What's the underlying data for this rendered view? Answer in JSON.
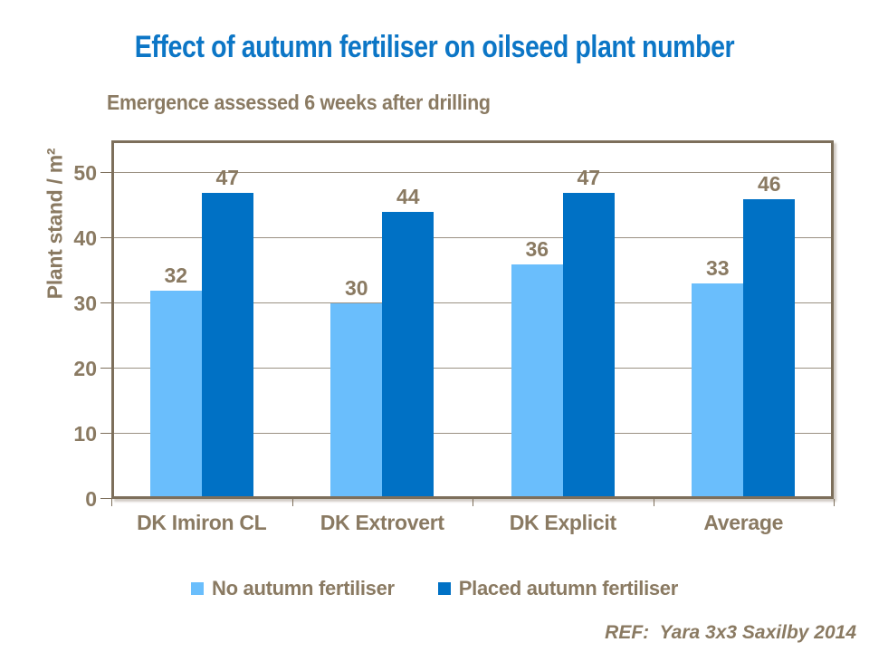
{
  "slide": {
    "title": "Effect of autumn fertiliser on oilseed plant number",
    "subtitle": "Emergence assessed 6 weeks after drilling",
    "footer": "REF:  Yara 3x3 Saxilby 2014"
  },
  "colors": {
    "title_blue": "#0c76c6",
    "text_brown": "#8a7a62",
    "grid_line": "#9b9183",
    "plot_border": "#7d6f5b"
  },
  "chart_data": {
    "type": "bar",
    "title": "Effect of autumn fertiliser on oilseed plant number",
    "subtitle": "Emergence assessed 6 weeks after drilling",
    "categories": [
      "DK Imiron CL",
      "DK Extrovert",
      "DK Explicit",
      "Average"
    ],
    "series": [
      {
        "name": "No autumn fertiliser",
        "color": "#6abefc",
        "values": [
          32,
          30,
          36,
          33
        ]
      },
      {
        "name": "Placed autumn fertiliser",
        "color": "#0071c5",
        "values": [
          47,
          44,
          47,
          46
        ]
      }
    ],
    "ylabel": "Plant stand / m²",
    "xlabel": "",
    "ylim": [
      0,
      55
    ],
    "yticks": [
      0,
      10,
      20,
      30,
      40,
      50
    ],
    "grid": true,
    "data_labels": true,
    "legend_position": "bottom",
    "annotation": "REF:  Yara 3x3 Saxilby 2014"
  }
}
